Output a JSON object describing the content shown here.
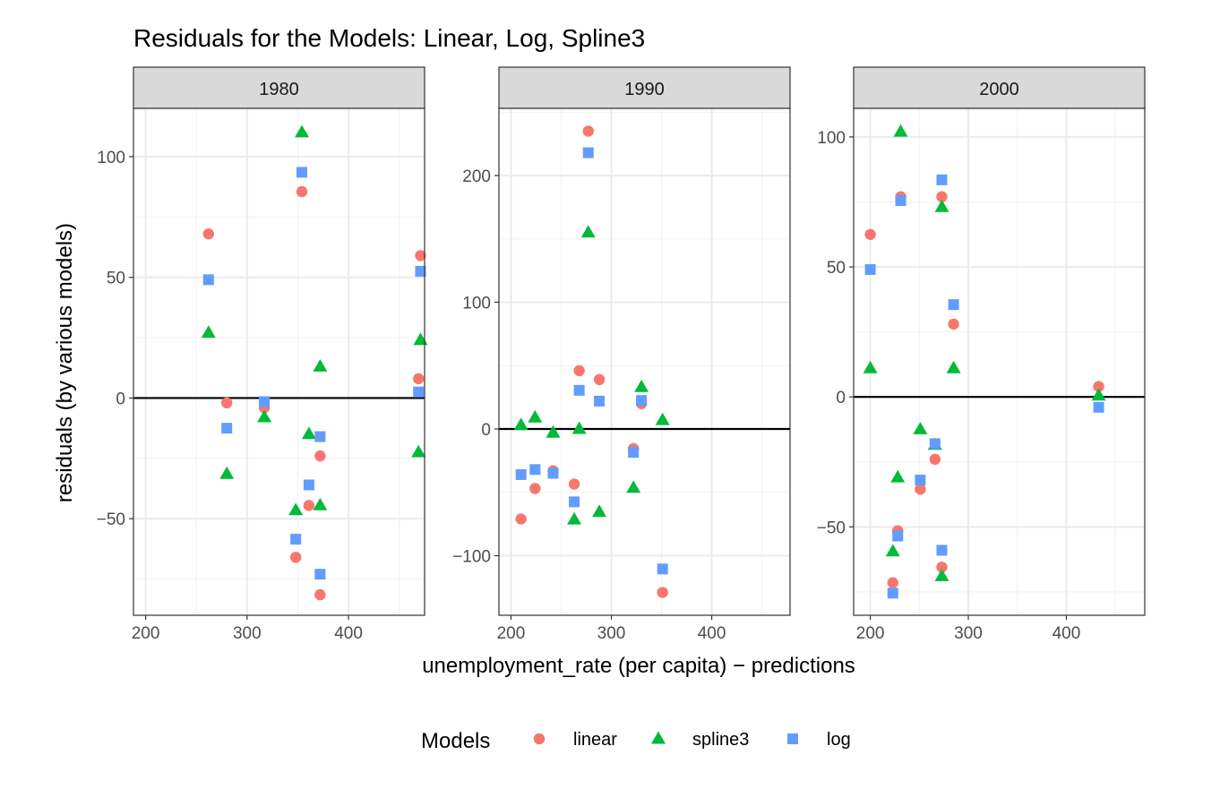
{
  "chart_data": {
    "type": "scatter",
    "title": "Residuals for the Models: Linear, Log, Spline3",
    "xlabel": "unemployment_rate (per capita) − predictions",
    "ylabel": "residuals (by various models)",
    "legend": {
      "title": "Models",
      "position": "bottom",
      "entries": [
        {
          "name": "linear",
          "color": "#F8766D",
          "shape": "circle"
        },
        {
          "name": "spline3",
          "color": "#00BA38",
          "shape": "triangle"
        },
        {
          "name": "log",
          "color": "#619CFF",
          "shape": "square"
        }
      ]
    },
    "reference_line_y": 0,
    "grid": true,
    "panels": [
      {
        "label": "1980",
        "xlim": [
          188,
          475
        ],
        "ylim": [
          -90,
          120
        ],
        "x_ticks": [
          200,
          300,
          400
        ],
        "x_tick_labels": [
          "200",
          "300",
          "400"
        ],
        "y_ticks": [
          -50,
          0,
          50,
          100
        ],
        "y_tick_labels": [
          "−50",
          "0",
          "50",
          "100"
        ],
        "series": [
          {
            "name": "linear",
            "points": [
              [
                262,
                68
              ],
              [
                280,
                -2
              ],
              [
                317,
                -4
              ],
              [
                354,
                85.5
              ],
              [
                348,
                -66
              ],
              [
                361,
                -44.5
              ],
              [
                372,
                -24
              ],
              [
                372,
                -81.5
              ],
              [
                469,
                8
              ],
              [
                471,
                59
              ]
            ]
          },
          {
            "name": "spline3",
            "points": [
              [
                262,
                27
              ],
              [
                280,
                -31.5
              ],
              [
                317,
                -8
              ],
              [
                354,
                110
              ],
              [
                348,
                -46.5
              ],
              [
                361,
                -15
              ],
              [
                372,
                13
              ],
              [
                372,
                -44.5
              ],
              [
                469,
                -22.5
              ],
              [
                471,
                24
              ]
            ]
          },
          {
            "name": "log",
            "points": [
              [
                262,
                49
              ],
              [
                280,
                -12.5
              ],
              [
                317,
                -1.5
              ],
              [
                354,
                93.5
              ],
              [
                348,
                -58.5
              ],
              [
                361,
                -36
              ],
              [
                372,
                -16
              ],
              [
                372,
                -73
              ],
              [
                469,
                2.5
              ],
              [
                471,
                52.5
              ]
            ]
          }
        ]
      },
      {
        "label": "1990",
        "xlim": [
          188,
          478
        ],
        "ylim": [
          -147,
          253
        ],
        "x_ticks": [
          200,
          300,
          400
        ],
        "x_tick_labels": [
          "200",
          "300",
          "400"
        ],
        "y_ticks": [
          -100,
          0,
          100,
          200
        ],
        "y_tick_labels": [
          "−100",
          "0",
          "100",
          "200"
        ],
        "series": [
          {
            "name": "linear",
            "points": [
              [
                210,
                -71
              ],
              [
                224,
                -47
              ],
              [
                242,
                -33
              ],
              [
                263,
                -43.5
              ],
              [
                268,
                46
              ],
              [
                277,
                235
              ],
              [
                288,
                39
              ],
              [
                322,
                -15.5
              ],
              [
                330,
                20
              ],
              [
                351,
                -129
              ]
            ]
          },
          {
            "name": "spline3",
            "points": [
              [
                210,
                3
              ],
              [
                224,
                9
              ],
              [
                242,
                -3
              ],
              [
                263,
                -71.5
              ],
              [
                268,
                0
              ],
              [
                277,
                155
              ],
              [
                288,
                -65.5
              ],
              [
                322,
                -46.5
              ],
              [
                330,
                33
              ],
              [
                351,
                7
              ]
            ]
          },
          {
            "name": "log",
            "points": [
              [
                210,
                -36
              ],
              [
                224,
                -32
              ],
              [
                242,
                -35
              ],
              [
                263,
                -57.5
              ],
              [
                268,
                30.5
              ],
              [
                277,
                218
              ],
              [
                288,
                22
              ],
              [
                322,
                -18.5
              ],
              [
                330,
                22.5
              ],
              [
                351,
                -110.5
              ]
            ]
          }
        ]
      },
      {
        "label": "2000",
        "xlim": [
          183,
          480
        ],
        "ylim": [
          -84,
          111
        ],
        "x_ticks": [
          200,
          300,
          400
        ],
        "x_tick_labels": [
          "200",
          "300",
          "400"
        ],
        "y_ticks": [
          -50,
          0,
          50,
          100
        ],
        "y_tick_labels": [
          "−50",
          "0",
          "50",
          "100"
        ],
        "series": [
          {
            "name": "linear",
            "points": [
              [
                200,
                62.5
              ],
              [
                223,
                -71.5
              ],
              [
                228,
                -51.5
              ],
              [
                231,
                77
              ],
              [
                251,
                -35.5
              ],
              [
                266,
                -24
              ],
              [
                273,
                77
              ],
              [
                273,
                -65.5
              ],
              [
                285,
                28
              ],
              [
                433,
                4
              ]
            ]
          },
          {
            "name": "spline3",
            "points": [
              [
                200,
                11
              ],
              [
                223,
                -59.5
              ],
              [
                228,
                -31
              ],
              [
                231,
                102
              ],
              [
                251,
                -12.5
              ],
              [
                266,
                -18.5
              ],
              [
                273,
                73
              ],
              [
                273,
                -69
              ],
              [
                285,
                11
              ],
              [
                433,
                0.5
              ]
            ]
          },
          {
            "name": "log",
            "points": [
              [
                200,
                49
              ],
              [
                223,
                -75.5
              ],
              [
                228,
                -53.5
              ],
              [
                231,
                75.5
              ],
              [
                251,
                -32
              ],
              [
                266,
                -18
              ],
              [
                273,
                83.5
              ],
              [
                273,
                -59
              ],
              [
                285,
                35.5
              ],
              [
                433,
                -4
              ]
            ]
          }
        ]
      }
    ]
  }
}
